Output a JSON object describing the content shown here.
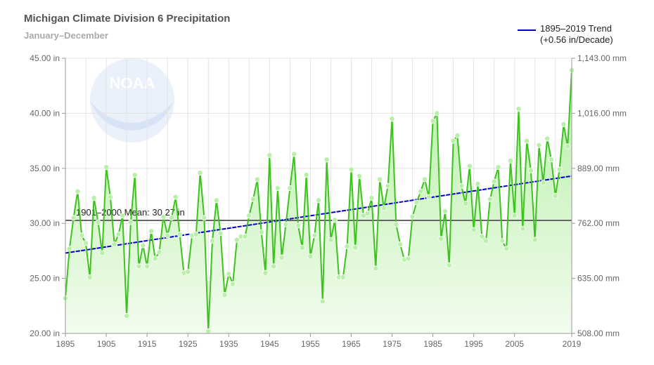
{
  "chart_data": {
    "type": "line",
    "title": "Michigan Climate Division 6 Precipitation",
    "subtitle": "January–December",
    "xlim": [
      1895,
      2019
    ],
    "ylim": [
      20,
      45
    ],
    "x_ticks": [
      "1895",
      "1905",
      "1915",
      "1925",
      "1935",
      "1945",
      "1955",
      "1965",
      "1975",
      "1985",
      "1995",
      "2005",
      "2019"
    ],
    "y_ticks_left": [
      "20.00 in",
      "25.00 in",
      "30.00 in",
      "35.00 in",
      "40.00 in",
      "45.00 in"
    ],
    "y_ticks_right": [
      "508.00 mm",
      "635.00 mm",
      "762.00 mm",
      "889.00 mm",
      "1,016.00 mm",
      "1,143.00 mm"
    ],
    "series": [
      {
        "values": [
          23.2,
          27.7,
          30.5,
          32.9,
          28.9,
          28.2,
          25.1,
          32.3,
          30.1,
          27.3,
          35.1,
          32.4,
          28.1,
          29.0,
          30.7,
          21.6,
          30.1,
          34.4,
          26.1,
          28.0,
          26.1,
          29.3,
          26.8,
          27.4,
          30.6,
          28.9,
          30.5,
          32.4,
          29.0,
          25.5,
          25.6,
          28.9,
          29.0,
          34.6,
          30.5,
          20.2,
          28.4,
          32.1,
          29.1,
          23.5,
          25.4,
          24.5,
          28.5,
          28.8,
          28.8,
          30.7,
          32.2,
          34.0,
          29.2,
          25.5,
          36.2,
          26.1,
          33.2,
          26.9,
          29.9,
          33.2,
          36.3,
          29.8,
          27.8,
          34.4,
          27.0,
          28.9,
          32.1,
          22.9,
          35.8,
          28.5,
          30.3,
          25.1,
          25.1,
          27.9,
          34.9,
          27.8,
          34.3,
          30.7,
          30.9,
          32.3,
          25.9,
          34.0,
          31.4,
          33.4,
          39.5,
          29.9,
          28.1,
          26.7,
          26.8,
          30.6,
          31.9,
          32.9,
          34.0,
          32.4,
          39.3,
          40.0,
          28.6,
          31.1,
          26.2,
          37.5,
          38.0,
          33.4,
          31.8,
          35.2,
          29.4,
          33.6,
          28.8,
          28.4,
          32.2,
          33.8,
          35.1,
          28.4,
          27.7,
          35.7,
          30.7,
          40.4,
          29.5,
          37.5,
          34.8,
          28.5,
          37.1,
          33.7,
          37.7,
          35.8,
          32.5,
          34.9,
          39.0,
          37.0,
          43.9
        ]
      }
    ],
    "trend": {
      "label_line1": "1895–2019 Trend",
      "label_line2": "(+0.56 in/Decade)",
      "start": 27.3,
      "end": 34.3,
      "color": "#0000cc"
    },
    "mean": {
      "label": "1901–2000 Mean: 30.27 in",
      "value": 30.27
    },
    "logo_text": "NOAA",
    "colors": {
      "line": "#3cc31e",
      "marker_fill": "#b8f0a8",
      "area_top": "#b6efa6",
      "area_bottom": "#f2fcee",
      "grid": "#e3e3e3",
      "mean_line": "#666666"
    }
  }
}
